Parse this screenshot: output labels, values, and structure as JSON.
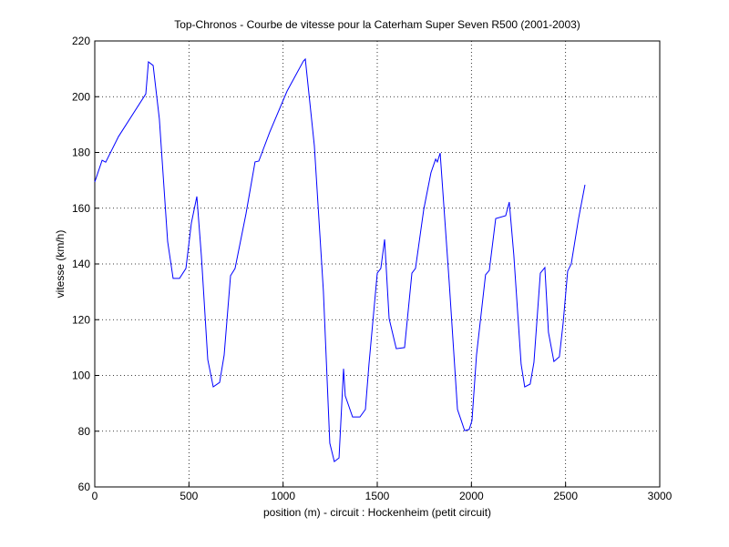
{
  "chart_data": {
    "type": "line",
    "title": "Top-Chronos - Courbe de vitesse pour la Caterham Super Seven R500 (2001-2003)",
    "xlabel": "position (m) - circuit : Hockenheim (petit circuit)",
    "ylabel": "vitesse (km/h)",
    "xlim": [
      0,
      3000
    ],
    "xticks": [
      0,
      500,
      1000,
      1500,
      2000,
      2500,
      3000
    ],
    "ylim": [
      60,
      220
    ],
    "yticks": [
      60,
      80,
      100,
      120,
      140,
      160,
      180,
      200,
      220
    ],
    "grid": true,
    "x": [
      0,
      39,
      58,
      126,
      271,
      285,
      310,
      343,
      387,
      416,
      450,
      484,
      513,
      542,
      566,
      600,
      629,
      663,
      687,
      721,
      745,
      803,
      851,
      871,
      929,
      1021,
      1108,
      1118,
      1166,
      1214,
      1248,
      1272,
      1297,
      1321,
      1330,
      1369,
      1408,
      1437,
      1456,
      1500,
      1519,
      1539,
      1563,
      1601,
      1645,
      1684,
      1703,
      1747,
      1785,
      1810,
      1819,
      1834,
      1882,
      1926,
      1964,
      1988,
      2003,
      2027,
      2075,
      2095,
      2129,
      2182,
      2201,
      2225,
      2264,
      2283,
      2312,
      2332,
      2366,
      2390,
      2409,
      2438,
      2467,
      2487,
      2511,
      2530,
      2569,
      2603
    ],
    "series": [
      {
        "color": "#0000ff",
        "values": [
          169.4,
          177.2,
          176.5,
          185.7,
          201,
          212.5,
          211.2,
          192,
          148,
          134.8,
          134.8,
          138.4,
          154.7,
          164.2,
          143,
          105.7,
          95.9,
          97.5,
          107.3,
          135.8,
          138.4,
          158,
          176.6,
          176.9,
          187.3,
          202,
          212.8,
          213.5,
          182.4,
          130.2,
          75.7,
          69.1,
          70.4,
          102.4,
          92.7,
          85.1,
          85.1,
          87.8,
          104,
          136.7,
          138.4,
          148.8,
          120.4,
          109.6,
          110,
          136.7,
          138.4,
          159.6,
          172.7,
          177.6,
          176.6,
          179.8,
          133.5,
          87.8,
          80.2,
          80.6,
          83.8,
          107.3,
          136.1,
          137.7,
          156.3,
          157.3,
          162.2,
          143.3,
          104,
          95.9,
          96.9,
          104.7,
          136.7,
          138.7,
          115.5,
          105,
          106.7,
          118.8,
          137.4,
          140,
          156.3,
          168.4
        ]
      }
    ]
  }
}
